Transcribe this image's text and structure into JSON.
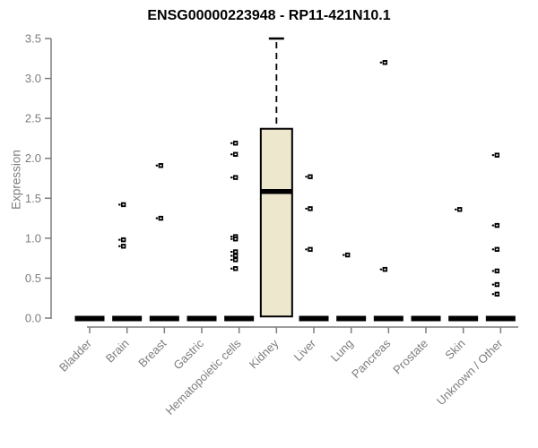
{
  "title": "ENSG00000223948 - RP11-421N10.1",
  "chart_data": {
    "type": "boxplot",
    "title": "ENSG00000223948 - RP11-421N10.1",
    "xlabel": "",
    "ylabel": "Expression",
    "ylim": [
      0,
      3.5
    ],
    "yticks": [
      0.0,
      0.5,
      1.0,
      1.5,
      2.0,
      2.5,
      3.0,
      3.5
    ],
    "grid": false,
    "legend": "none",
    "categories": [
      "Bladder",
      "Brain",
      "Breast",
      "Gastric",
      "Hematopoietic cells",
      "Kidney",
      "Liver",
      "Lung",
      "Pancreas",
      "Prostate",
      "Skin",
      "Unknown / Other"
    ],
    "series": [
      {
        "name": "Bladder",
        "q1": 0,
        "median": 0,
        "q3": 0,
        "whisker_low": 0,
        "whisker_high": 0,
        "points": []
      },
      {
        "name": "Brain",
        "q1": 0,
        "median": 0,
        "q3": 0,
        "whisker_low": 0,
        "whisker_high": 0,
        "points": [
          1.42,
          0.98,
          0.9
        ]
      },
      {
        "name": "Breast",
        "q1": 0,
        "median": 0,
        "q3": 0,
        "whisker_low": 0,
        "whisker_high": 0,
        "points": [
          1.91,
          1.25
        ]
      },
      {
        "name": "Gastric",
        "q1": 0,
        "median": 0,
        "q3": 0,
        "whisker_low": 0,
        "whisker_high": 0,
        "points": []
      },
      {
        "name": "Hematopoietic cells",
        "q1": 0,
        "median": 0,
        "q3": 0,
        "whisker_low": 0,
        "whisker_high": 0,
        "points": [
          2.19,
          2.05,
          1.76,
          1.02,
          0.99,
          0.83,
          0.78,
          0.73,
          0.62
        ]
      },
      {
        "name": "Kidney",
        "q1": 0.02,
        "median": 1.585,
        "q3": 2.37,
        "whisker_low": 0.02,
        "whisker_high": 3.5,
        "points": []
      },
      {
        "name": "Liver",
        "q1": 0,
        "median": 0,
        "q3": 0,
        "whisker_low": 0,
        "whisker_high": 0,
        "points": [
          1.77,
          1.37,
          0.86
        ]
      },
      {
        "name": "Lung",
        "q1": 0,
        "median": 0,
        "q3": 0,
        "whisker_low": 0,
        "whisker_high": 0,
        "points": [
          0.79
        ]
      },
      {
        "name": "Pancreas",
        "q1": 0,
        "median": 0,
        "q3": 0,
        "whisker_low": 0,
        "whisker_high": 0,
        "points": [
          3.2,
          0.61
        ]
      },
      {
        "name": "Prostate",
        "q1": 0,
        "median": 0,
        "q3": 0,
        "whisker_low": 0,
        "whisker_high": 0,
        "points": []
      },
      {
        "name": "Skin",
        "q1": 0,
        "median": 0,
        "q3": 0,
        "whisker_low": 0,
        "whisker_high": 0,
        "points": [
          1.36
        ]
      },
      {
        "name": "Unknown / Other",
        "q1": 0,
        "median": 0,
        "q3": 0,
        "whisker_low": 0,
        "whisker_high": 0,
        "points": [
          2.04,
          1.16,
          0.86,
          0.59,
          0.42,
          0.3
        ]
      }
    ],
    "colors": {
      "box_fill": "#ECE7CD",
      "box_stroke": "#000000",
      "median": "#000000",
      "point": "#000000",
      "axis": "#7d7d7d",
      "tick_text": "#7d7d7d",
      "title_text": "#000000",
      "background": "#ffffff"
    }
  }
}
